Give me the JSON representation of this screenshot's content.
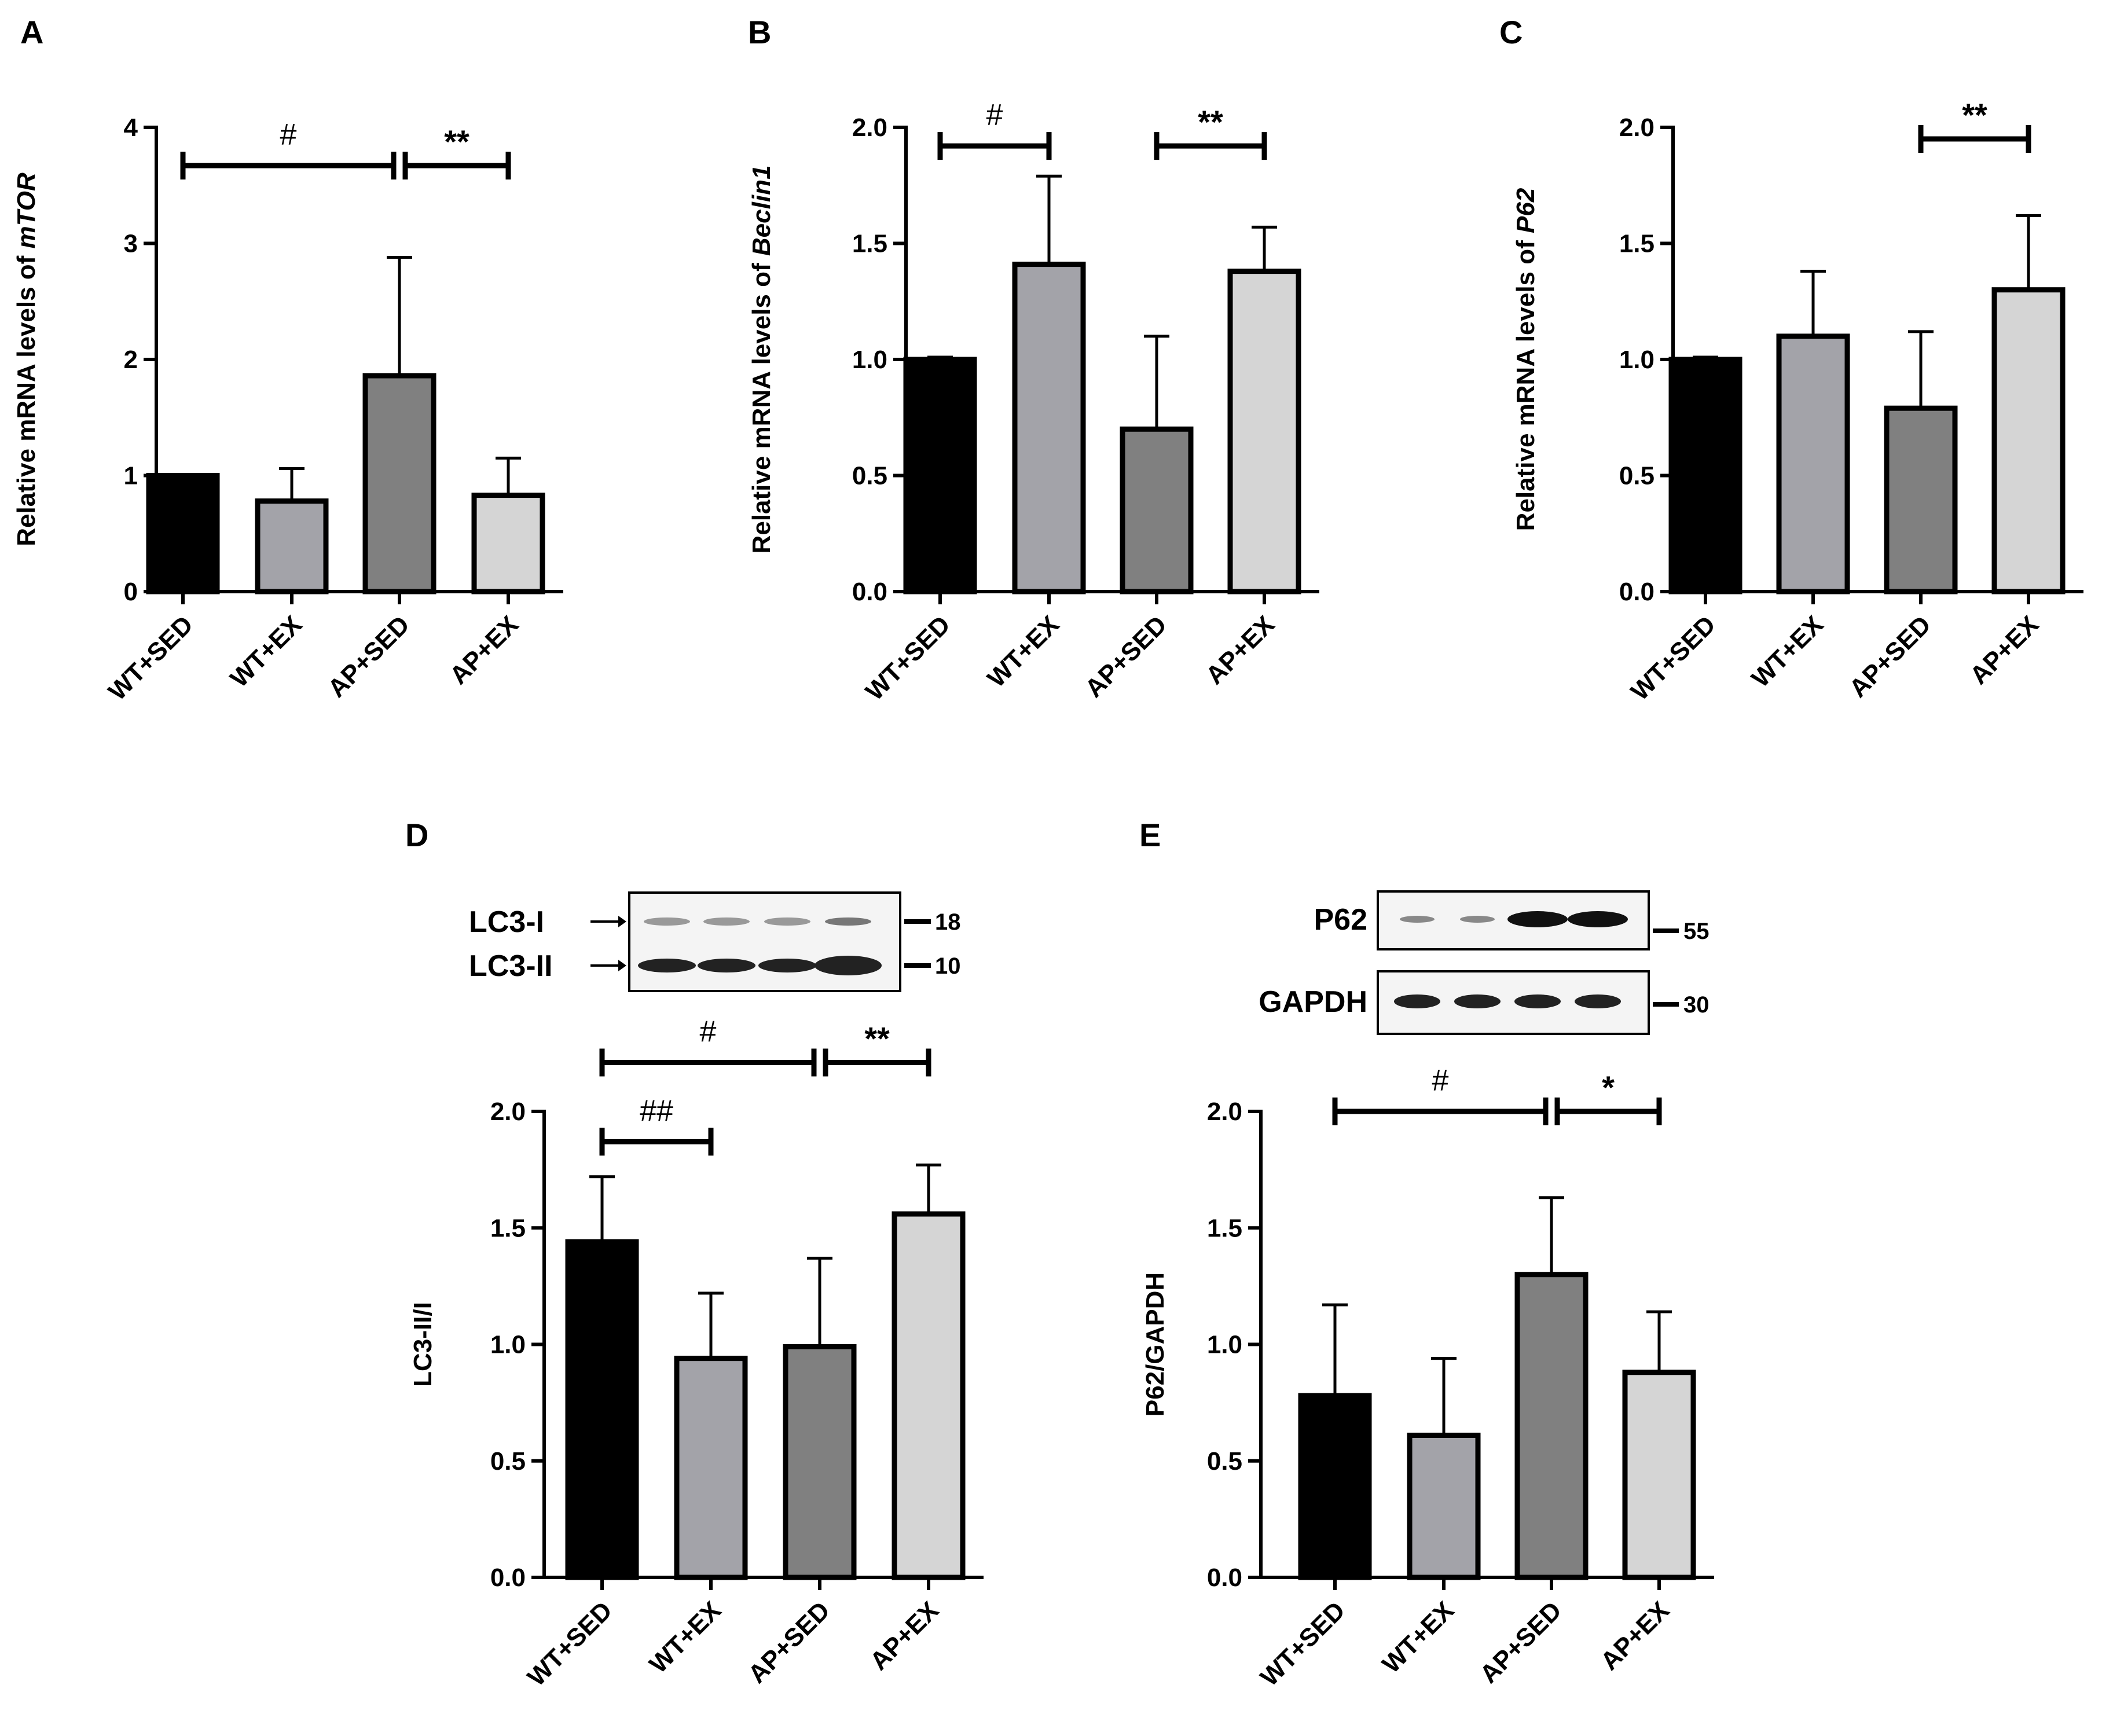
{
  "colors": {
    "WT+SED": "#000000",
    "WT+EX": "#a3a3a9",
    "AP+SED": "#808080",
    "AP+EX": "#d5d5d5"
  },
  "chart_data": [
    {
      "panel": "A",
      "type": "bar",
      "title": "",
      "xlabel": "",
      "ylabel": "Relative mRNA levels of ",
      "ylabel_italic": "mTOR",
      "categories": [
        "WT+SED",
        "WT+EX",
        "AP+SED",
        "AP+EX"
      ],
      "values": [
        1.0,
        0.78,
        1.86,
        0.83
      ],
      "errors": [
        0.01,
        0.28,
        1.02,
        0.32
      ],
      "ylim": [
        0,
        4
      ],
      "yticks": [
        0,
        1,
        2,
        3,
        4
      ],
      "ytick_labels": [
        "0",
        "1",
        "2",
        "3",
        "4"
      ],
      "significance": [
        {
          "from": 0,
          "to": 2,
          "label": "#",
          "level": 3.67
        },
        {
          "from": 2,
          "to": 3,
          "label": "**",
          "level": 3.67
        }
      ]
    },
    {
      "panel": "B",
      "type": "bar",
      "title": "",
      "xlabel": "",
      "ylabel": "Relative mRNA levels of ",
      "ylabel_italic": "Beclin1",
      "categories": [
        "WT+SED",
        "WT+EX",
        "AP+SED",
        "AP+EX"
      ],
      "values": [
        1.0,
        1.41,
        0.7,
        1.38
      ],
      "errors": [
        0.01,
        0.38,
        0.4,
        0.19
      ],
      "ylim": [
        0,
        2.0
      ],
      "yticks": [
        0,
        0.5,
        1.0,
        1.5,
        2.0
      ],
      "ytick_labels": [
        "0.0",
        "0.5",
        "1.0",
        "1.5",
        "2.0"
      ],
      "significance": [
        {
          "from": 0,
          "to": 1,
          "label": "#",
          "level": 1.92
        },
        {
          "from": 2,
          "to": 3,
          "label": "**",
          "level": 1.92
        }
      ]
    },
    {
      "panel": "C",
      "type": "bar",
      "title": "",
      "xlabel": "",
      "ylabel": "Relative mRNA levels of ",
      "ylabel_italic": "P62",
      "categories": [
        "WT+SED",
        "WT+EX",
        "AP+SED",
        "AP+EX"
      ],
      "values": [
        1.0,
        1.1,
        0.79,
        1.3
      ],
      "errors": [
        0.01,
        0.28,
        0.33,
        0.32
      ],
      "ylim": [
        0,
        2.0
      ],
      "yticks": [
        0,
        0.5,
        1.0,
        1.5,
        2.0
      ],
      "ytick_labels": [
        "0.0",
        "0.5",
        "1.0",
        "1.5",
        "2.0"
      ],
      "significance": [
        {
          "from": 2,
          "to": 3,
          "label": "**",
          "level": 1.95
        }
      ]
    },
    {
      "panel": "D",
      "type": "bar",
      "title": "",
      "xlabel": "",
      "ylabel": "LC3-II/I",
      "ylabel_italic": "",
      "categories": [
        "WT+SED",
        "WT+EX",
        "AP+SED",
        "AP+EX"
      ],
      "values": [
        1.44,
        0.94,
        0.99,
        1.56
      ],
      "errors": [
        0.28,
        0.28,
        0.38,
        0.21
      ],
      "ylim": [
        0,
        2.0
      ],
      "yticks": [
        0,
        0.5,
        1.0,
        1.5,
        2.0
      ],
      "ytick_labels": [
        "0.0",
        "0.5",
        "1.0",
        "1.5",
        "2.0"
      ],
      "significance": [
        {
          "from": 0,
          "to": 1,
          "label": "##",
          "level": 1.87
        },
        {
          "from": 0,
          "to": 2,
          "label": "#",
          "level": 2.21
        },
        {
          "from": 2,
          "to": 3,
          "label": "**",
          "level": 2.21
        }
      ],
      "blot": {
        "rows": [
          {
            "label": "LC3-I",
            "marker": "18"
          },
          {
            "label": "LC3-II",
            "marker": "10"
          }
        ]
      }
    },
    {
      "panel": "E",
      "type": "bar",
      "title": "",
      "xlabel": "",
      "ylabel": "P62/GAPDH",
      "ylabel_italic": "",
      "categories": [
        "WT+SED",
        "WT+EX",
        "AP+SED",
        "AP+EX"
      ],
      "values": [
        0.78,
        0.61,
        1.3,
        0.88
      ],
      "errors": [
        0.39,
        0.33,
        0.33,
        0.26
      ],
      "ylim": [
        0,
        2.0
      ],
      "yticks": [
        0,
        0.5,
        1.0,
        1.5,
        2.0
      ],
      "ytick_labels": [
        "0.0",
        "0.5",
        "1.0",
        "1.5",
        "2.0"
      ],
      "significance": [
        {
          "from": 0,
          "to": 2,
          "label": "#",
          "level": 2.0
        },
        {
          "from": 2,
          "to": 3,
          "label": "*",
          "level": 2.0
        }
      ],
      "blot": {
        "rows": [
          {
            "label": "P62",
            "marker": "55"
          },
          {
            "label": "GAPDH",
            "marker": "30"
          }
        ]
      }
    }
  ]
}
